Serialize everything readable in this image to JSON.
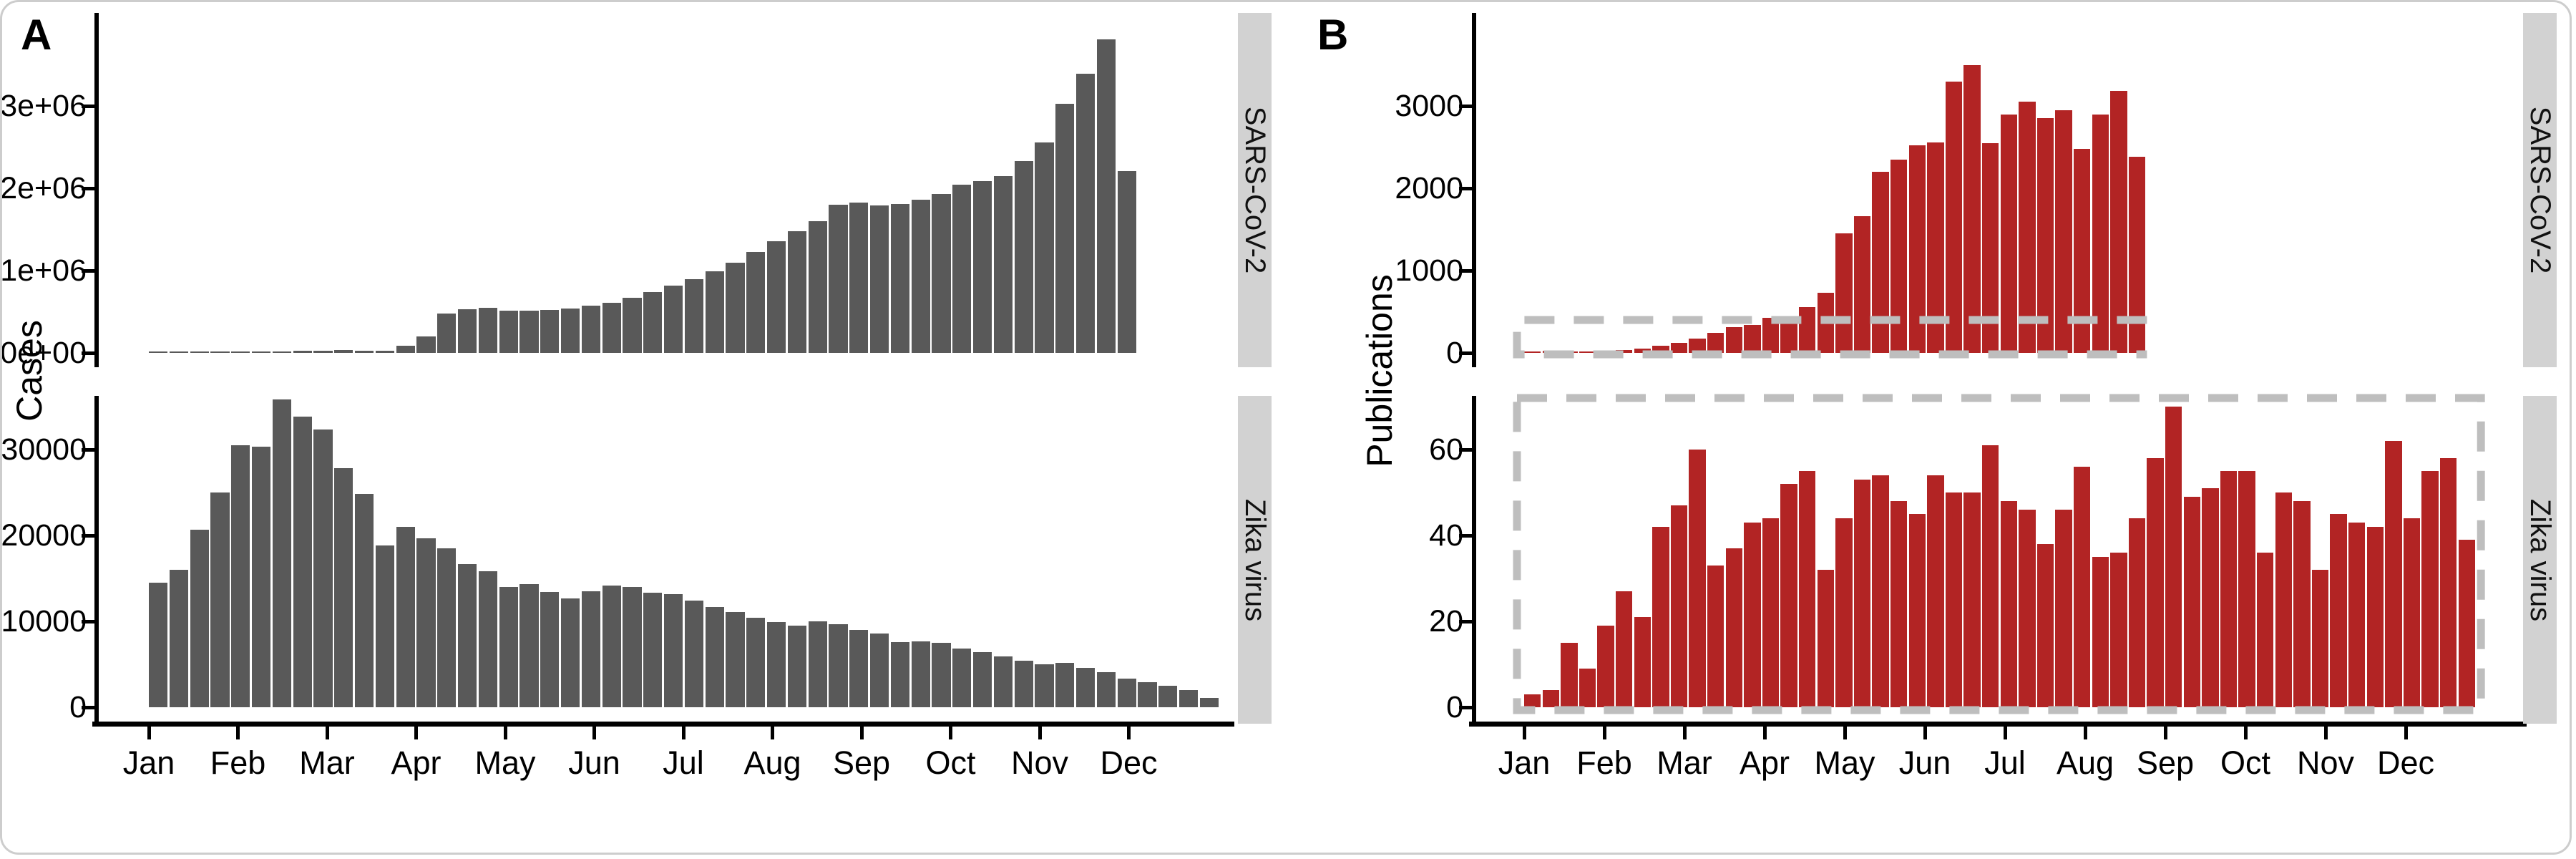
{
  "figure": {
    "panel_a": {
      "label": "A",
      "y_axis_title": "Cases"
    },
    "panel_b": {
      "label": "B",
      "y_axis_title": "Publications"
    },
    "x_axis_months": [
      "Jan",
      "Feb",
      "Mar",
      "Apr",
      "May",
      "Jun",
      "Jul",
      "Aug",
      "Sep",
      "Oct",
      "Nov",
      "Dec"
    ]
  },
  "colors": {
    "cases_bar": "#595959",
    "publications_bar": "#b22424",
    "strip_background": "#d2d2d2",
    "dashed_highlight": "#bebebe",
    "axis": "#000000"
  },
  "chart_data": [
    {
      "id": "sars_cov2_cases",
      "type": "bar",
      "panel": "A",
      "facet_label": "SARS-CoV-2",
      "ylabel": "Cases",
      "x_unit": "week",
      "x_range": [
        "Jan",
        "early Dec"
      ],
      "grid": false,
      "legend": false,
      "ytick_labels": [
        "0e+00",
        "1e+06",
        "2e+06",
        "3e+06"
      ],
      "ytick_values": [
        0,
        1000000,
        2000000,
        3000000
      ],
      "ylim": [
        0,
        4100000
      ],
      "values": [
        3000,
        4000,
        5000,
        6000,
        9000,
        12000,
        16000,
        22000,
        30000,
        36000,
        26000,
        30000,
        85000,
        200000,
        480000,
        530000,
        545000,
        515000,
        510000,
        520000,
        535000,
        570000,
        610000,
        670000,
        740000,
        820000,
        900000,
        990000,
        1100000,
        1230000,
        1360000,
        1480000,
        1600000,
        1800000,
        1830000,
        1790000,
        1810000,
        1860000,
        1930000,
        2040000,
        2090000,
        2150000,
        2330000,
        2560000,
        3030000,
        3390000,
        3810000,
        2210000
      ]
    },
    {
      "id": "zika_cases",
      "type": "bar",
      "panel": "A",
      "facet_label": "Zika virus",
      "ylabel": "Cases",
      "x_unit": "week",
      "x_range": [
        "Jan",
        "Dec"
      ],
      "grid": false,
      "legend": false,
      "ytick_labels": [
        "0",
        "10000",
        "20000",
        "30000"
      ],
      "ytick_values": [
        0,
        10000,
        20000,
        30000
      ],
      "ylim": [
        0,
        37000
      ],
      "values": [
        14500,
        16000,
        20700,
        25000,
        30500,
        30300,
        35800,
        33800,
        32300,
        27800,
        24800,
        18800,
        21000,
        19700,
        18500,
        16700,
        15800,
        14000,
        14300,
        13400,
        12700,
        13500,
        14200,
        14000,
        13300,
        13200,
        12400,
        11700,
        11100,
        10400,
        9900,
        9500,
        10000,
        9700,
        9000,
        8600,
        7600,
        7700,
        7500,
        6800,
        6400,
        5900,
        5400,
        5000,
        5200,
        4600,
        4100,
        3300,
        2900,
        2500,
        2000,
        1100
      ]
    },
    {
      "id": "sars_cov2_publications",
      "type": "bar",
      "panel": "B",
      "facet_label": "SARS-CoV-2",
      "ylabel": "Publications",
      "x_unit": "week",
      "x_range": [
        "Jan",
        "mid Aug"
      ],
      "grid": false,
      "legend": false,
      "ytick_labels": [
        "0",
        "1000",
        "2000",
        "3000"
      ],
      "ytick_values": [
        0,
        1000,
        2000,
        3000
      ],
      "ylim": [
        0,
        3700
      ],
      "values": [
        10,
        25,
        8,
        12,
        20,
        35,
        55,
        85,
        120,
        170,
        240,
        310,
        340,
        430,
        390,
        560,
        730,
        1450,
        1660,
        2200,
        2350,
        2520,
        2560,
        3300,
        3500,
        2550,
        2900,
        3050,
        2850,
        2950,
        2480,
        2900,
        3180,
        2380
      ],
      "highlight_box": {
        "from_week": 0,
        "to_week": 34,
        "value_from": 0,
        "value_to": 400,
        "sides": "left-top-bottom"
      }
    },
    {
      "id": "zika_publications",
      "type": "bar",
      "panel": "B",
      "facet_label": "Zika virus",
      "ylabel": "Publications",
      "x_unit": "week",
      "x_range": [
        "Jan",
        "Dec"
      ],
      "grid": false,
      "legend": false,
      "ytick_labels": [
        "0",
        "20",
        "40",
        "60"
      ],
      "ytick_values": [
        0,
        20,
        40,
        60
      ],
      "ylim": [
        0,
        74
      ],
      "values": [
        3,
        4,
        15,
        9,
        19,
        27,
        21,
        42,
        47,
        60,
        33,
        37,
        43,
        44,
        52,
        55,
        32,
        44,
        53,
        54,
        48,
        45,
        54,
        50,
        50,
        61,
        48,
        46,
        38,
        46,
        56,
        35,
        36,
        44,
        58,
        70,
        49,
        51,
        55,
        55,
        36,
        50,
        48,
        32,
        45,
        43,
        42,
        62,
        44,
        55,
        58,
        39
      ],
      "highlight_box": {
        "from_week": 0,
        "to_week": 52,
        "value_from": 0,
        "value_to": 72,
        "sides": "all"
      }
    }
  ]
}
